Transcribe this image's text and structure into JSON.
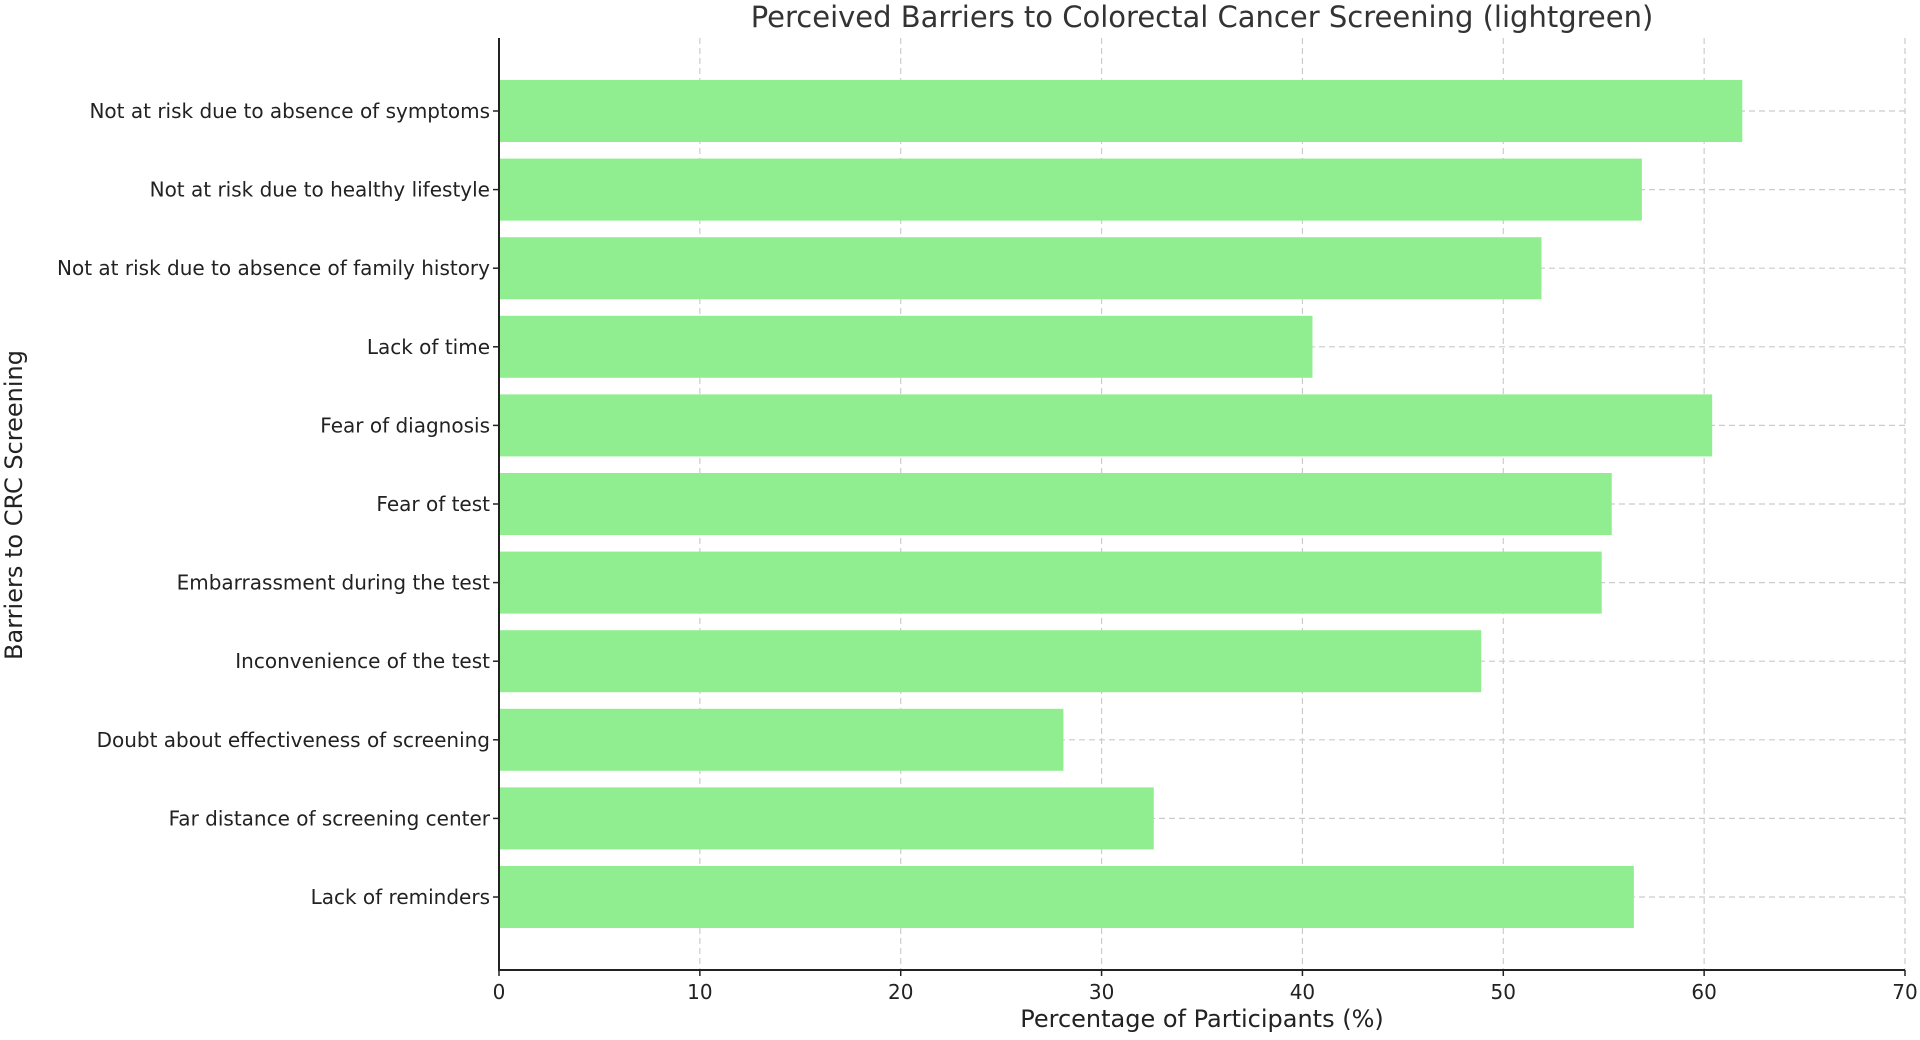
{
  "chart_data": {
    "type": "bar",
    "orientation": "horizontal",
    "title": "Perceived Barriers to Colorectal Cancer Screening (lightgreen)",
    "xlabel": "Percentage of Participants (%)",
    "ylabel": "Barriers to CRC Screening",
    "xlim": [
      0,
      70
    ],
    "xticks": [
      0,
      10,
      20,
      30,
      40,
      50,
      60,
      70
    ],
    "grid": true,
    "bar_color": "#90ee90",
    "categories": [
      "Not at risk due to absence of symptoms",
      "Not at risk due to healthy lifestyle",
      "Not at risk due to absence of family history",
      "Lack of time",
      "Fear of diagnosis",
      "Fear of test",
      "Embarrassment during the test",
      "Inconvenience of the test",
      "Doubt about effectiveness of screening",
      "Far distance of screening center",
      "Lack of reminders"
    ],
    "values": [
      61.9,
      56.9,
      51.9,
      40.5,
      60.4,
      55.4,
      54.9,
      48.9,
      28.1,
      32.6,
      56.5
    ]
  }
}
